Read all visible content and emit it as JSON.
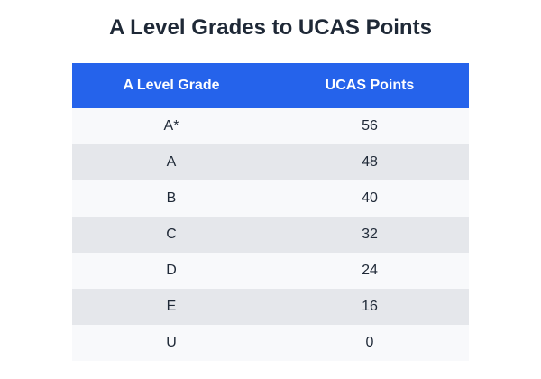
{
  "title": "A Level Grades to UCAS Points",
  "table": {
    "headers": [
      "A Level Grade",
      "UCAS Points"
    ],
    "rows": [
      [
        "A*",
        "56"
      ],
      [
        "A",
        "48"
      ],
      [
        "B",
        "40"
      ],
      [
        "C",
        "32"
      ],
      [
        "D",
        "24"
      ],
      [
        "E",
        "16"
      ],
      [
        "U",
        "0"
      ]
    ]
  },
  "colors": {
    "header_background": "#2563eb",
    "header_text": "#ffffff",
    "row_light": "#f8f9fb",
    "row_dark": "#e5e7eb",
    "text": "#1f2937"
  }
}
